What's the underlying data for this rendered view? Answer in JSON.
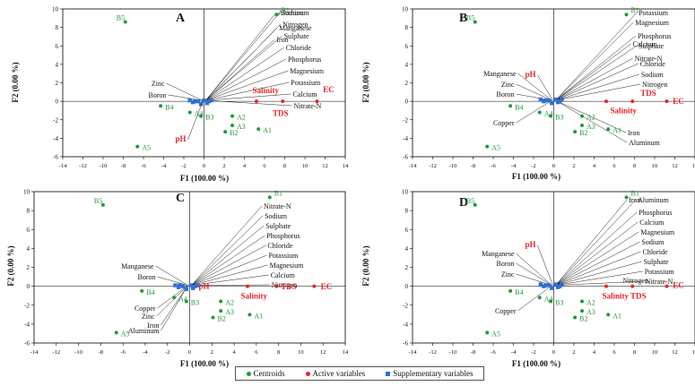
{
  "chart_data": [
    {
      "type": "scatter",
      "panel_label": "A",
      "xlabel": "F1 (100.00 %)",
      "ylabel": "F2 (0.00 %)",
      "xlim": [
        -14,
        14
      ],
      "ylim": [
        -6,
        10
      ],
      "xticks": [
        -14,
        -12,
        -10,
        -8,
        -6,
        -4,
        -2,
        0,
        2,
        4,
        6,
        8,
        10,
        12,
        14
      ],
      "yticks": [
        -6,
        -4,
        -2,
        0,
        2,
        4,
        6,
        8,
        10
      ],
      "centroids": [
        {
          "name": "B1",
          "x": 7.2,
          "y": 9.4
        },
        {
          "name": "B5",
          "x": -7.8,
          "y": 8.6
        },
        {
          "name": "B4",
          "x": -4.3,
          "y": -0.5
        },
        {
          "name": "A4",
          "x": -1.4,
          "y": -1.2
        },
        {
          "name": "B3",
          "x": -0.3,
          "y": -1.6
        },
        {
          "name": "A2",
          "x": 2.8,
          "y": -1.6
        },
        {
          "name": "A3",
          "x": 2.8,
          "y": -2.6
        },
        {
          "name": "B2",
          "x": 2.1,
          "y": -3.3
        },
        {
          "name": "A1",
          "x": 5.4,
          "y": -3.0
        },
        {
          "name": "A5",
          "x": -6.6,
          "y": -4.9
        }
      ],
      "active": [
        {
          "name": "pH",
          "x": -0.1,
          "y": -0.1
        },
        {
          "name": "Salinity",
          "x": 5.2,
          "y": 0.0
        },
        {
          "name": "TDS",
          "x": 7.8,
          "y": 0.0
        },
        {
          "name": "EC",
          "x": 11.2,
          "y": 0.0
        }
      ],
      "supplementary": [
        {
          "name": "Aluminum"
        },
        {
          "name": "Manganese"
        },
        {
          "name": "Iron"
        },
        {
          "name": "Sodium"
        },
        {
          "name": "Nitrogen"
        },
        {
          "name": "Sulphate"
        },
        {
          "name": "Chloride"
        },
        {
          "name": "Phosphorus"
        },
        {
          "name": "Magnesium"
        },
        {
          "name": "Potassium"
        },
        {
          "name": "Calcium"
        },
        {
          "name": "Nitrate-N"
        },
        {
          "name": "Zinc"
        },
        {
          "name": "Boron"
        }
      ]
    },
    {
      "type": "scatter",
      "panel_label": "B",
      "xlabel": "F1 (100.00 %)",
      "ylabel": "F2 (0.00 %)",
      "xlim": [
        -14,
        14
      ],
      "ylim": [
        -6,
        10
      ],
      "xticks": [
        -14,
        -12,
        -10,
        -8,
        -6,
        -4,
        -2,
        0,
        2,
        4,
        6,
        8,
        10,
        12,
        14
      ],
      "yticks": [
        -6,
        -4,
        -2,
        0,
        2,
        4,
        6,
        8,
        10
      ],
      "centroids": [
        {
          "name": "B1",
          "x": 7.2,
          "y": 9.4
        },
        {
          "name": "B5",
          "x": -7.8,
          "y": 8.6
        },
        {
          "name": "B4",
          "x": -4.3,
          "y": -0.5
        },
        {
          "name": "A4",
          "x": -1.4,
          "y": -1.2
        },
        {
          "name": "B3",
          "x": -0.3,
          "y": -1.6
        },
        {
          "name": "A2",
          "x": 2.8,
          "y": -1.6
        },
        {
          "name": "A3",
          "x": 2.8,
          "y": -2.6
        },
        {
          "name": "B2",
          "x": 2.1,
          "y": -3.3
        },
        {
          "name": "A1",
          "x": 5.4,
          "y": -3.0
        },
        {
          "name": "A5",
          "x": -6.6,
          "y": -4.9
        }
      ],
      "active": [
        {
          "name": "pH",
          "x": -0.1,
          "y": 0.1
        },
        {
          "name": "Salinity",
          "x": 5.2,
          "y": 0.0
        },
        {
          "name": "TDS",
          "x": 7.8,
          "y": 0.0
        },
        {
          "name": "EC",
          "x": 11.2,
          "y": 0.0
        }
      ],
      "supplementary": [
        {
          "name": "Potassium"
        },
        {
          "name": "Magnesium"
        },
        {
          "name": "Calcium"
        },
        {
          "name": "Nitrate-N"
        },
        {
          "name": "Manganese"
        },
        {
          "name": "Zinc"
        },
        {
          "name": "Boron"
        },
        {
          "name": "Phosphorus"
        },
        {
          "name": "Sulphate"
        },
        {
          "name": "Chloride"
        },
        {
          "name": "Sodium"
        },
        {
          "name": "Nitrogen"
        },
        {
          "name": "Copper"
        },
        {
          "name": "Iron"
        },
        {
          "name": "Aluminum"
        }
      ]
    },
    {
      "type": "scatter",
      "panel_label": "C",
      "xlabel": "F1 (100.00 %)",
      "ylabel": "F2 (0.00 %)",
      "xlim": [
        -14,
        14
      ],
      "ylim": [
        -6,
        10
      ],
      "xticks": [
        -14,
        -12,
        -10,
        -8,
        -6,
        -4,
        -2,
        0,
        2,
        4,
        6,
        8,
        10,
        12,
        14
      ],
      "yticks": [
        -6,
        -4,
        -2,
        0,
        2,
        4,
        6,
        8,
        10
      ],
      "centroids": [
        {
          "name": "B1",
          "x": 7.2,
          "y": 9.4
        },
        {
          "name": "B5",
          "x": -7.8,
          "y": 8.6
        },
        {
          "name": "B4",
          "x": -4.3,
          "y": -0.5
        },
        {
          "name": "A4",
          "x": -1.4,
          "y": -1.2
        },
        {
          "name": "B3",
          "x": -0.3,
          "y": -1.6
        },
        {
          "name": "A2",
          "x": 2.8,
          "y": -1.6
        },
        {
          "name": "A3",
          "x": 2.8,
          "y": -2.6
        },
        {
          "name": "B2",
          "x": 2.1,
          "y": -3.3
        },
        {
          "name": "A1",
          "x": 5.4,
          "y": -3.0
        },
        {
          "name": "A5",
          "x": -6.6,
          "y": -4.9
        }
      ],
      "active": [
        {
          "name": "pH",
          "x": 0.8,
          "y": 0.0
        },
        {
          "name": "Salinity",
          "x": 5.2,
          "y": 0.0
        },
        {
          "name": "TDS",
          "x": 7.8,
          "y": 0.0
        },
        {
          "name": "EC",
          "x": 11.2,
          "y": 0.0
        }
      ],
      "supplementary": [
        {
          "name": "Nitrate-N"
        },
        {
          "name": "Sodium"
        },
        {
          "name": "Sulphate"
        },
        {
          "name": "Phosphorus"
        },
        {
          "name": "Chloride"
        },
        {
          "name": "Potassium"
        },
        {
          "name": "Magnesium"
        },
        {
          "name": "Calcium"
        },
        {
          "name": "Nitrogen"
        },
        {
          "name": "Manganese"
        },
        {
          "name": "Boron"
        },
        {
          "name": "Copper"
        },
        {
          "name": "Zinc"
        },
        {
          "name": "Iron"
        },
        {
          "name": "Aluminum"
        }
      ]
    },
    {
      "type": "scatter",
      "panel_label": "D",
      "xlabel": "F1 (100.00 %)",
      "ylabel": "F2 (0.00 %)",
      "xlim": [
        -14,
        14
      ],
      "ylim": [
        -6,
        10
      ],
      "xticks": [
        -14,
        -12,
        -10,
        -8,
        -6,
        -4,
        -2,
        0,
        2,
        4,
        6,
        8,
        10,
        12,
        14
      ],
      "yticks": [
        -6,
        -4,
        -2,
        0,
        2,
        4,
        6,
        8,
        10
      ],
      "centroids": [
        {
          "name": "B1",
          "x": 7.2,
          "y": 9.4
        },
        {
          "name": "B5",
          "x": -7.8,
          "y": 8.6
        },
        {
          "name": "B4",
          "x": -4.3,
          "y": -0.5
        },
        {
          "name": "A4",
          "x": -1.4,
          "y": -1.2
        },
        {
          "name": "B3",
          "x": -0.3,
          "y": -1.6
        },
        {
          "name": "A2",
          "x": 2.8,
          "y": -1.6
        },
        {
          "name": "A3",
          "x": 2.8,
          "y": -2.6
        },
        {
          "name": "B2",
          "x": 2.1,
          "y": -3.3
        },
        {
          "name": "A1",
          "x": 5.4,
          "y": -3.0
        },
        {
          "name": "A5",
          "x": -6.6,
          "y": -4.9
        }
      ],
      "active": [
        {
          "name": "pH",
          "x": -0.1,
          "y": 0.1
        },
        {
          "name": "Salinity",
          "x": 5.2,
          "y": 0.0
        },
        {
          "name": "TDS",
          "x": 7.8,
          "y": 0.0
        },
        {
          "name": "EC",
          "x": 11.2,
          "y": 0.0
        }
      ],
      "supplementary": [
        {
          "name": "Iron"
        },
        {
          "name": "Aluminum"
        },
        {
          "name": "Phosphorus"
        },
        {
          "name": "Calcium"
        },
        {
          "name": "Magnesium"
        },
        {
          "name": "Sodium"
        },
        {
          "name": "Chloride"
        },
        {
          "name": "Sulphate"
        },
        {
          "name": "Potassium"
        },
        {
          "name": "Nitrate-N"
        },
        {
          "name": "Manganese"
        },
        {
          "name": "Boron"
        },
        {
          "name": "Zinc"
        },
        {
          "name": "Nitrogen"
        },
        {
          "name": "Copper"
        }
      ]
    }
  ],
  "legend": {
    "centroids": "Centroids",
    "active": "Active variables",
    "supplementary": "Supplementary variables"
  },
  "colors": {
    "centroid": "#1f9a3a",
    "active": "#e3262b",
    "supplementary": "#2f6fd6",
    "panel_label": "#1a1a1a"
  }
}
